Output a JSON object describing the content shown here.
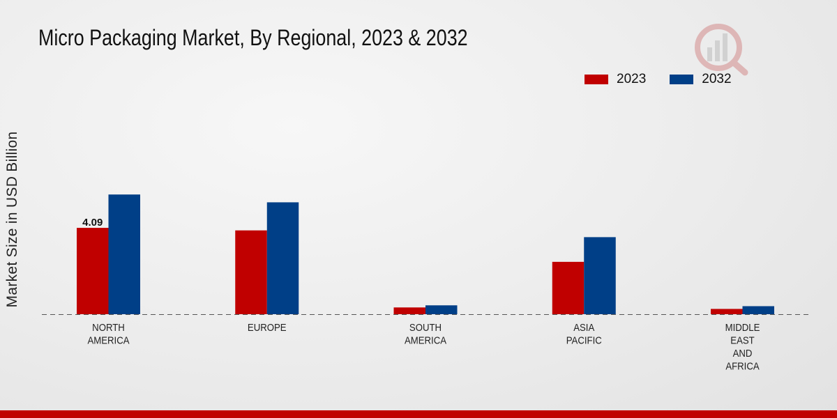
{
  "chart_data": {
    "type": "bar",
    "title": "Micro Packaging Market, By Regional, 2023 & 2032",
    "xlabel": "",
    "ylabel": "Market Size in USD Billion",
    "categories": [
      [
        "NORTH",
        "AMERICA"
      ],
      [
        "EUROPE"
      ],
      [
        "SOUTH",
        "AMERICA"
      ],
      [
        "ASIA",
        "PACIFIC"
      ],
      [
        "MIDDLE",
        "EAST",
        "AND",
        "AFRICA"
      ]
    ],
    "series": [
      {
        "name": "2023",
        "color": "#c00000",
        "values": [
          4.09,
          3.97,
          0.32,
          2.48,
          0.25
        ]
      },
      {
        "name": "2032",
        "color": "#003f87",
        "values": [
          5.67,
          5.3,
          0.42,
          3.65,
          0.38
        ]
      }
    ],
    "data_labels": [
      {
        "series": 0,
        "index": 0,
        "text": "4.09"
      }
    ],
    "ylim": [
      0,
      10
    ],
    "grid": false,
    "legend_position": "top-right"
  }
}
